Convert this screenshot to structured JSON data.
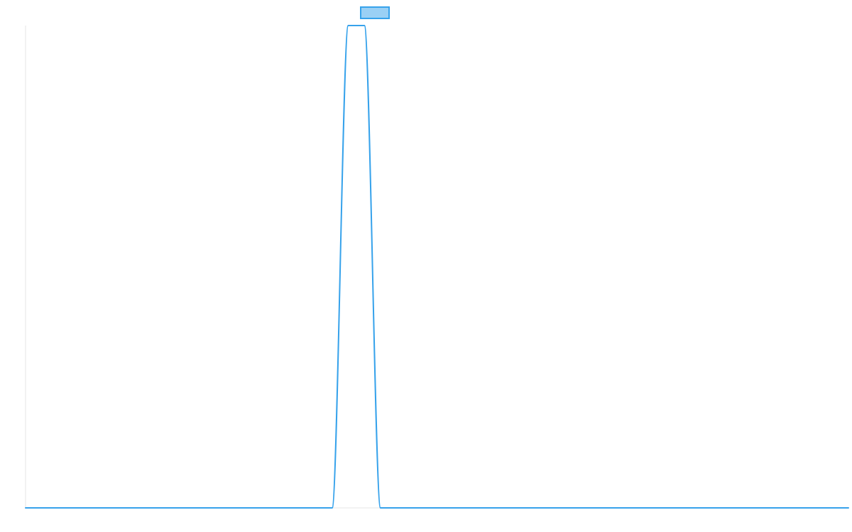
{
  "chart_data": {
    "type": "line",
    "title": "",
    "xlabel": "",
    "ylabel": "",
    "grid": false,
    "legend": {
      "placement": "top-center",
      "entries": [
        {
          "label": "",
          "color": "#36a2eb",
          "fill": "#9ad0f5"
        }
      ]
    },
    "x": [
      0,
      1,
      2,
      3,
      4,
      5,
      6,
      7,
      8,
      9,
      10,
      11,
      12,
      13,
      14,
      15,
      16,
      17,
      18,
      19,
      20,
      21,
      22,
      23,
      24,
      25,
      26,
      27,
      28,
      29,
      30,
      31,
      32,
      33,
      34,
      35,
      36,
      37,
      38,
      39,
      40,
      41,
      42,
      43,
      44,
      45,
      46,
      47,
      48,
      49,
      50,
      51
    ],
    "xlim": [
      0,
      51
    ],
    "ylim": [
      0,
      1
    ],
    "series": [
      {
        "color": "#36a2eb",
        "values": [
          0,
          0,
          0,
          0,
          0,
          0,
          0,
          0,
          0,
          0,
          0,
          0,
          0,
          0,
          0,
          0,
          0,
          0,
          0,
          0,
          1,
          1,
          0,
          0,
          0,
          0,
          0,
          0,
          0,
          0,
          0,
          0,
          0,
          0,
          0,
          0,
          0,
          0,
          0,
          0,
          0,
          0,
          0,
          0,
          0,
          0,
          0,
          0,
          0,
          0,
          0,
          0
        ]
      }
    ]
  }
}
